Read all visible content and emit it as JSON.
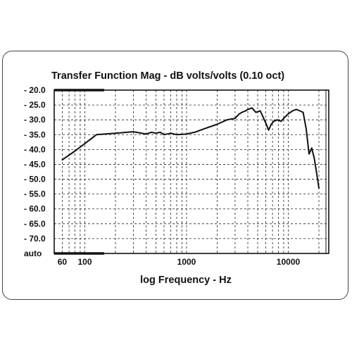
{
  "chart_data": {
    "type": "line",
    "title": "Transfer Function Mag - dB volts/volts (0.10 oct)",
    "xlabel": "log Frequency - Hz",
    "ylabel": "",
    "x_scale": "log",
    "xlim": [
      50,
      25000
    ],
    "ylim": [
      -75,
      -20
    ],
    "x_tick_labels": [
      {
        "value": 60,
        "label": "60"
      },
      {
        "value": 100,
        "label": "100"
      },
      {
        "value": 1000,
        "label": "1000"
      },
      {
        "value": 10000,
        "label": "10000"
      }
    ],
    "y_tick_labels": [
      {
        "value": -20,
        "label": "- 20.0"
      },
      {
        "value": -25,
        "label": "- 25.0"
      },
      {
        "value": -30,
        "label": "- 30.0"
      },
      {
        "value": -35,
        "label": "- 35.0"
      },
      {
        "value": -40,
        "label": "- 40.0"
      },
      {
        "value": -45,
        "label": "- 45.0"
      },
      {
        "value": -50,
        "label": "- 50.0"
      },
      {
        "value": -55,
        "label": "- 55.0"
      },
      {
        "value": -60,
        "label": "- 60.0"
      },
      {
        "value": -65,
        "label": "- 65.0"
      },
      {
        "value": -70,
        "label": "- 70.0"
      },
      {
        "value": -75,
        "label": "auto"
      }
    ],
    "grid": true,
    "series": [
      {
        "color": "#111111",
        "x": [
          60,
          80,
          100,
          130,
          200,
          300,
          400,
          450,
          500,
          550,
          600,
          700,
          800,
          1000,
          1200,
          1500,
          2000,
          2500,
          3000,
          3300,
          3500,
          3800,
          4000,
          4400,
          4800,
          5300,
          6000,
          6400,
          6800,
          7200,
          7800,
          8500,
          9000,
          10000,
          11000,
          12000,
          13000,
          14000,
          15000,
          16000,
          17000,
          18000,
          19000,
          20000
        ],
        "y": [
          -43.5,
          -40.5,
          -38,
          -35,
          -34.5,
          -34,
          -34.8,
          -34.2,
          -34.5,
          -34.2,
          -35,
          -34.5,
          -35,
          -34.8,
          -34.2,
          -33,
          -31.5,
          -30,
          -29.5,
          -28,
          -27.5,
          -27,
          -26.5,
          -26,
          -27.5,
          -27,
          -31,
          -33.5,
          -31.5,
          -30.5,
          -30,
          -30.5,
          -29.5,
          -28,
          -27,
          -26.5,
          -27,
          -27.5,
          -33,
          -41.5,
          -39.5,
          -43,
          -48,
          -53
        ]
      }
    ]
  }
}
